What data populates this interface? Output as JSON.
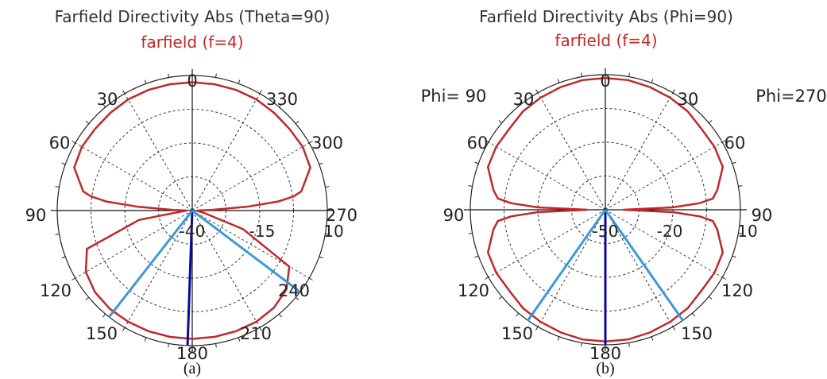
{
  "chart_data": [
    {
      "type": "polar",
      "title": "Farfield Directivity Abs (Theta=90)",
      "subtitle": "farfield (f=4)",
      "caption": "(a)",
      "angle_labels": [
        "0",
        "30",
        "60",
        "90",
        "120",
        "150",
        "180",
        "210",
        "240",
        "270",
        "300",
        "330"
      ],
      "radial_labels": [
        "-40",
        "-15",
        "10"
      ],
      "rmin": -40,
      "rmax": 10,
      "grid": true,
      "series": [
        {
          "color": "#c0282a",
          "angles_deg": [
            0,
            10,
            20,
            30,
            40,
            50,
            60,
            70,
            80,
            82,
            84,
            86,
            88,
            90,
            95,
            100,
            110,
            120,
            130,
            140,
            150,
            160,
            170,
            180,
            190,
            200,
            210,
            220,
            230,
            240,
            250,
            260,
            265,
            270,
            272,
            274,
            276,
            278,
            280,
            290,
            300,
            310,
            320,
            330,
            340,
            350,
            360
          ],
          "values_dB": [
            7.5,
            7.5,
            7.5,
            7.5,
            7.2,
            7,
            7.2,
            6.5,
            1,
            -2,
            -8,
            -20,
            -33,
            -38,
            -36,
            -20,
            1.5,
            5.5,
            7,
            7.5,
            7.5,
            7.5,
            7.5,
            7.5,
            7.5,
            7.5,
            7.5,
            7,
            5.5,
            1.5,
            -20,
            -36,
            -38,
            -38,
            -33,
            -20,
            -8,
            -2,
            1,
            6.5,
            7.2,
            7,
            7.2,
            7.5,
            7.5,
            7.5,
            7.5
          ]
        }
      ],
      "beam_lines": [
        {
          "color": "#0a0a9a",
          "angle_deg": 178
        },
        {
          "color": "#3a9ad6",
          "angle_deg": 142
        },
        {
          "color": "#3a9ad6",
          "angle_deg": 233
        }
      ]
    },
    {
      "type": "polar",
      "title": "Farfield Directivity Abs (Phi=90)",
      "subtitle": "farfield (f=4)",
      "caption": "(b)",
      "angle_labels": [
        "0",
        "30",
        "60",
        "90",
        "120",
        "150",
        "180",
        "150",
        "120",
        "90",
        "60",
        "30"
      ],
      "radial_labels": [
        "-50",
        "-20",
        "10"
      ],
      "side_labels": {
        "left": "Phi= 90",
        "right": "Phi=270"
      },
      "rmin": -50,
      "rmax": 10,
      "grid": true,
      "series": [
        {
          "color": "#c0282a",
          "angles_deg": [
            0,
            10,
            20,
            30,
            40,
            50,
            60,
            70,
            80,
            84,
            86,
            88,
            90,
            92,
            94,
            96,
            100,
            110,
            120,
            130,
            140,
            150,
            160,
            170,
            180,
            190,
            200,
            210,
            220,
            230,
            240,
            250,
            260,
            264,
            266,
            268,
            270,
            272,
            274,
            276,
            280,
            290,
            300,
            310,
            320,
            330,
            340,
            350,
            360
          ],
          "values_dB": [
            8.5,
            8.5,
            8,
            7.5,
            7,
            5.8,
            6,
            5.5,
            0.5,
            -2,
            -8,
            -20,
            -42,
            -20,
            -8,
            -2,
            0.5,
            5.5,
            6,
            5.8,
            7,
            7.5,
            8,
            8.5,
            8.5,
            8.5,
            8,
            7.5,
            7,
            5.8,
            6,
            5.5,
            0.5,
            -2,
            -8,
            -20,
            -42,
            -20,
            -8,
            -2,
            0.5,
            5.5,
            6,
            5.8,
            7,
            7.5,
            8,
            8.5,
            8.5
          ]
        }
      ],
      "beam_lines": [
        {
          "color": "#0a0a9a",
          "angle_deg": 180
        },
        {
          "color": "#3a9ad6",
          "angle_deg": 145
        },
        {
          "color": "#3a9ad6",
          "angle_deg": 215
        }
      ]
    }
  ]
}
